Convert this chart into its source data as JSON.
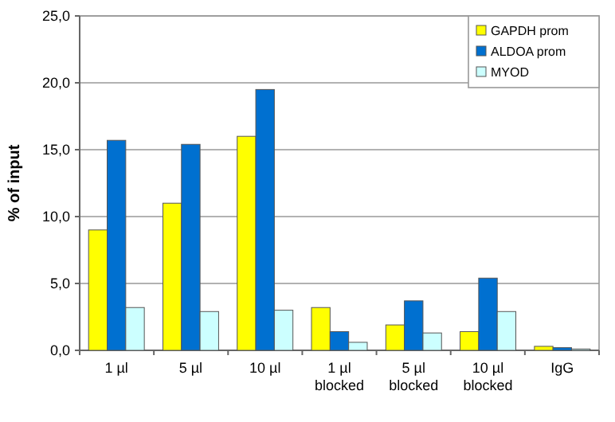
{
  "chart_data": {
    "type": "bar",
    "ylabel": "% of input",
    "categories": [
      "1 µl",
      "5 µl",
      "10 µl",
      "1 µl\nblocked",
      "5 µl\nblocked",
      "10 µl\nblocked",
      "IgG"
    ],
    "series": [
      {
        "name": "GAPDH prom",
        "color": "#ffff00",
        "values": [
          9.0,
          11.0,
          16.0,
          3.2,
          1.9,
          1.4,
          0.3
        ]
      },
      {
        "name": "ALDOA prom",
        "color": "#0070d0",
        "values": [
          15.7,
          15.4,
          19.5,
          1.4,
          3.7,
          5.4,
          0.2
        ]
      },
      {
        "name": "MYOD",
        "color": "#ccffff",
        "values": [
          3.2,
          2.9,
          3.0,
          0.6,
          1.3,
          2.9,
          0.1
        ]
      }
    ],
    "ylim": [
      0,
      25
    ],
    "yticks": [
      {
        "value": 0,
        "label": "0,0"
      },
      {
        "value": 5,
        "label": "5,0"
      },
      {
        "value": 10,
        "label": "10,0"
      },
      {
        "value": 15,
        "label": "15,0"
      },
      {
        "value": 20,
        "label": "20,0"
      },
      {
        "value": 25,
        "label": "25,0"
      }
    ],
    "grid": "y",
    "legend": "top right"
  }
}
